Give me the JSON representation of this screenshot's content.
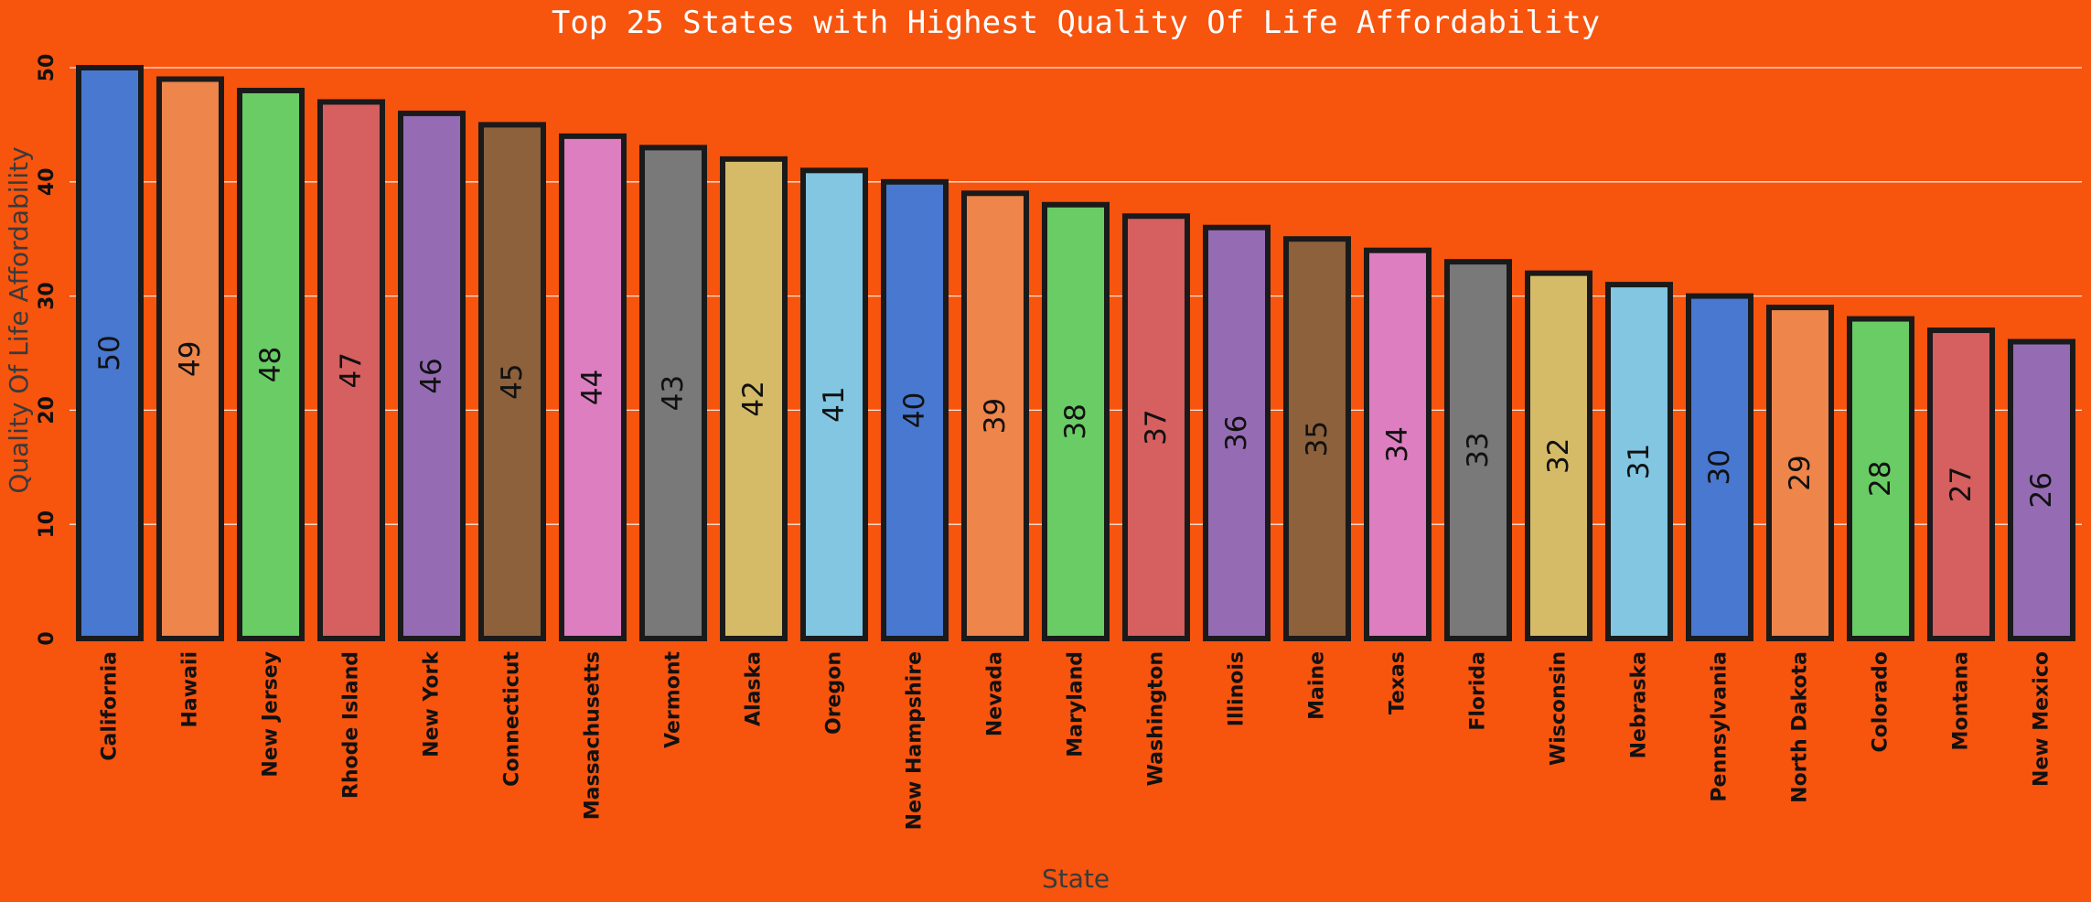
{
  "chart_data": {
    "type": "bar",
    "title": "Top 25 States with Highest Quality Of Life Affordability",
    "xlabel": "State",
    "ylabel": "Quality Of Life Affordability",
    "ylim": [
      0,
      50
    ],
    "yticks": [
      "0",
      "10",
      "20",
      "30",
      "40",
      "50"
    ],
    "grid": true,
    "background_color": "#f7540e",
    "categories": [
      "California",
      "Hawaii",
      "New Jersey",
      "Rhode Island",
      "New York",
      "Connecticut",
      "Massachusetts",
      "Vermont",
      "Alaska",
      "Oregon",
      "New Hampshire",
      "Nevada",
      "Maryland",
      "Washington",
      "Illinois",
      "Maine",
      "Texas",
      "Florida",
      "Wisconsin",
      "Nebraska",
      "Pennsylvania",
      "North Dakota",
      "Colorado",
      "Montana",
      "New Mexico"
    ],
    "values": [
      50,
      49,
      48,
      47,
      46,
      45,
      44,
      43,
      42,
      41,
      40,
      39,
      38,
      37,
      36,
      35,
      34,
      33,
      32,
      31,
      30,
      29,
      28,
      27,
      26
    ],
    "data_labels": [
      "50",
      "49",
      "48",
      "47",
      "46",
      "45",
      "44",
      "43",
      "42",
      "41",
      "40",
      "39",
      "38",
      "37",
      "36",
      "35",
      "34",
      "33",
      "32",
      "31",
      "30",
      "29",
      "28",
      "27",
      "26"
    ],
    "colors": [
      "#4878d0",
      "#ee854a",
      "#6acc64",
      "#d65f5f",
      "#956cb4",
      "#8c613c",
      "#dc7ec0",
      "#797979",
      "#d5bb67",
      "#82c6e2",
      "#4878d0",
      "#ee854a",
      "#6acc64",
      "#d65f5f",
      "#956cb4",
      "#8c613c",
      "#dc7ec0",
      "#797979",
      "#d5bb67",
      "#82c6e2",
      "#4878d0",
      "#ee854a",
      "#6acc64",
      "#d65f5f",
      "#956cb4"
    ]
  }
}
